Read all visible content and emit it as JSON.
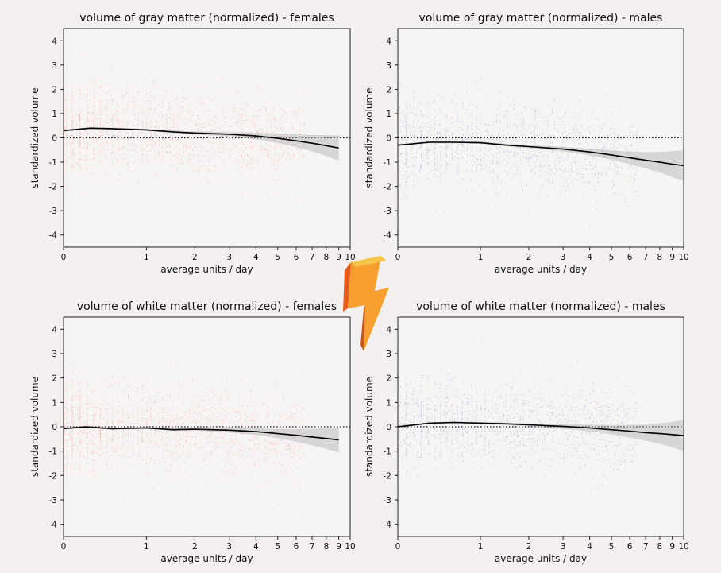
{
  "chart_data": [
    {
      "type": "scatter",
      "title": "volume of gray matter (normalized) - females",
      "xlabel": "average units / day",
      "ylabel": "standardized volume",
      "x_ticks": [
        0,
        1,
        2,
        3,
        4,
        5,
        6,
        7,
        8,
        9,
        10
      ],
      "y_ticks": [
        4,
        3,
        2,
        1,
        0,
        -1,
        -2,
        -3,
        -4
      ],
      "xlim": [
        0,
        10
      ],
      "ylim": [
        -4.5,
        4.5
      ],
      "x_scale": "log1p",
      "reference_line_y": 0,
      "point_color": "#e8807f",
      "trend": {
        "x": [
          0,
          0.25,
          0.5,
          1,
          1.5,
          2,
          3,
          4,
          5,
          6,
          7,
          8,
          9
        ],
        "y": [
          0.3,
          0.4,
          0.38,
          0.33,
          0.25,
          0.2,
          0.15,
          0.08,
          -0.02,
          -0.12,
          -0.22,
          -0.32,
          -0.42
        ]
      }
    },
    {
      "type": "scatter",
      "title": "volume of gray matter (normalized) - males",
      "xlabel": "average units / day",
      "ylabel": "standardized volume",
      "x_ticks": [
        0,
        1,
        2,
        3,
        4,
        5,
        6,
        7,
        8,
        9,
        10
      ],
      "y_ticks": [
        4,
        3,
        2,
        1,
        0,
        -1,
        -2,
        -3,
        -4
      ],
      "xlim": [
        0,
        10
      ],
      "ylim": [
        -4.5,
        4.5
      ],
      "x_scale": "log1p",
      "reference_line_y": 0,
      "point_color": "#6b8cc0",
      "trend": {
        "x": [
          0,
          0.3,
          0.6,
          1,
          1.5,
          2,
          3,
          4,
          5,
          6,
          7,
          8,
          9,
          10
        ],
        "y": [
          -0.3,
          -0.18,
          -0.18,
          -0.2,
          -0.3,
          -0.36,
          -0.46,
          -0.58,
          -0.7,
          -0.82,
          -0.92,
          -1.0,
          -1.08,
          -1.14
        ]
      }
    },
    {
      "type": "scatter",
      "title": "volume of white matter (normalized) - females",
      "xlabel": "average units / day",
      "ylabel": "standardized volume",
      "x_ticks": [
        0,
        1,
        2,
        3,
        4,
        5,
        6,
        7,
        8,
        9,
        10
      ],
      "y_ticks": [
        4,
        3,
        2,
        1,
        0,
        -1,
        -2,
        -3,
        -4
      ],
      "xlim": [
        0,
        10
      ],
      "ylim": [
        -4.5,
        4.5
      ],
      "x_scale": "log1p",
      "reference_line_y": 0,
      "point_color": "#e8807f",
      "trend": {
        "x": [
          0,
          0.2,
          0.5,
          1,
          1.5,
          2,
          3,
          4,
          5,
          6,
          7,
          8,
          9
        ],
        "y": [
          -0.08,
          0.0,
          -0.08,
          -0.05,
          -0.12,
          -0.1,
          -0.14,
          -0.2,
          -0.28,
          -0.35,
          -0.42,
          -0.48,
          -0.54
        ]
      }
    },
    {
      "type": "scatter",
      "title": "volume of white matter (normalized) - males",
      "xlabel": "average units / day",
      "ylabel": "standardized volume",
      "x_ticks": [
        0,
        1,
        2,
        3,
        4,
        5,
        6,
        7,
        8,
        9,
        10
      ],
      "y_ticks": [
        4,
        3,
        2,
        1,
        0,
        -1,
        -2,
        -3,
        -4
      ],
      "xlim": [
        0,
        10
      ],
      "ylim": [
        -4.5,
        4.5
      ],
      "x_scale": "log1p",
      "reference_line_y": 0,
      "point_color": "#6b8cc0",
      "trend": {
        "x": [
          0,
          0.3,
          0.6,
          1,
          1.5,
          2,
          3,
          4,
          5,
          6,
          7,
          8,
          9,
          10
        ],
        "y": [
          0.0,
          0.15,
          0.18,
          0.15,
          0.12,
          0.08,
          0.02,
          -0.05,
          -0.12,
          -0.18,
          -0.24,
          -0.28,
          -0.32,
          -0.36
        ]
      }
    }
  ],
  "logo": {
    "name": "lightning-bolt-logo",
    "colors": [
      "#f7a030",
      "#e85a1a",
      "#f6c64a"
    ]
  }
}
